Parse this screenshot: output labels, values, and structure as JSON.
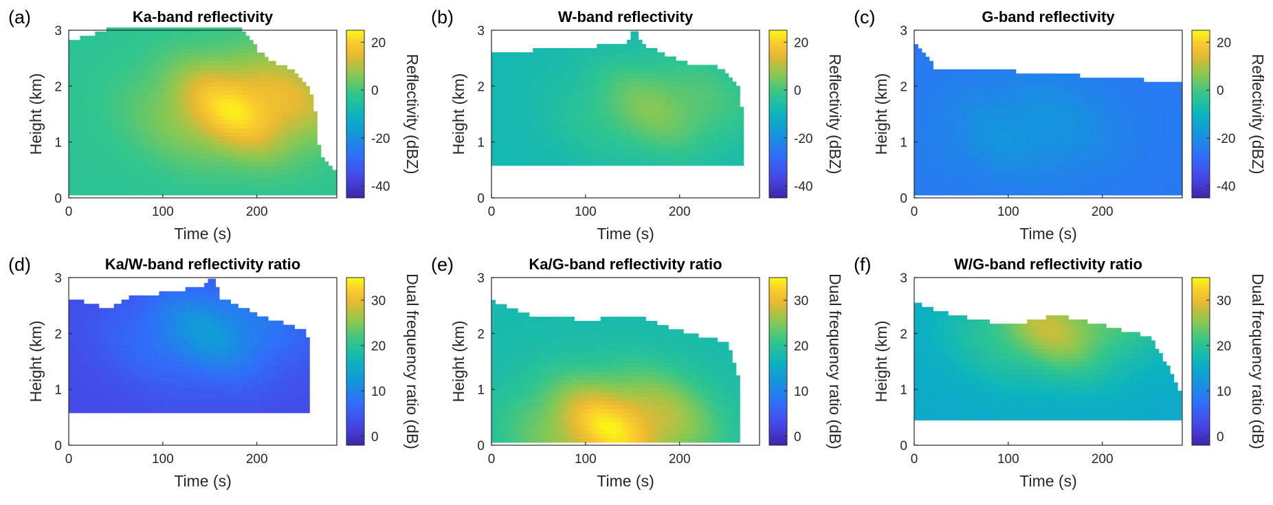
{
  "chart_data": [
    {
      "id": "a",
      "letter": "(a)",
      "type": "heatmap",
      "title": "Ka-band reflectivity",
      "xlabel": "Time (s)",
      "ylabel": "Height (km)",
      "cblabel": "Reflectivity (dBZ)",
      "xlim": [
        0,
        285
      ],
      "ylim": [
        0,
        3
      ],
      "xticks": [
        0,
        100,
        200
      ],
      "yticks": [
        0,
        1,
        2,
        3
      ],
      "clim": [
        -45,
        25
      ],
      "cticks": [
        20,
        0,
        -20,
        -40
      ],
      "echo_bottom_km": 0.05,
      "echo_top_km": [
        [
          0,
          2.8
        ],
        [
          20,
          2.85
        ],
        [
          40,
          3
        ],
        [
          180,
          3
        ],
        [
          200,
          2.6
        ],
        [
          210,
          2.45
        ],
        [
          240,
          2.2
        ],
        [
          255,
          1.9
        ],
        [
          260,
          1.5
        ],
        [
          250,
          1.1
        ],
        [
          265,
          0.9
        ],
        [
          270,
          0.6
        ],
        [
          285,
          0.45
        ],
        [
          290,
          0.05
        ]
      ],
      "peak": {
        "t": 185,
        "h": 1.6,
        "value": 22
      },
      "base_value": -3
    },
    {
      "id": "b",
      "letter": "(b)",
      "type": "heatmap",
      "title": "W-band reflectivity",
      "xlabel": "Time (s)",
      "ylabel": "Height (km)",
      "cblabel": "Reflectivity (dBZ)",
      "xlim": [
        0,
        285
      ],
      "ylim": [
        0,
        3
      ],
      "xticks": [
        0,
        100,
        200
      ],
      "yticks": [
        0,
        1,
        2,
        3
      ],
      "clim": [
        -45,
        25
      ],
      "cticks": [
        20,
        0,
        -20,
        -40
      ],
      "echo_bottom_km": 0.58,
      "echo_top_km": [
        [
          0,
          2.55
        ],
        [
          40,
          2.6
        ],
        [
          60,
          2.65
        ],
        [
          140,
          2.7
        ],
        [
          150,
          3
        ],
        [
          160,
          2.7
        ],
        [
          200,
          2.4
        ],
        [
          240,
          2.3
        ],
        [
          260,
          2.0
        ],
        [
          265,
          1.5
        ],
        [
          255,
          0.9
        ],
        [
          250,
          0.6
        ]
      ],
      "peak": {
        "t": 180,
        "h": 1.6,
        "value": 5
      },
      "base_value": -8
    },
    {
      "id": "c",
      "letter": "(c)",
      "type": "heatmap",
      "title": "G-band reflectivity",
      "xlabel": "Time (s)",
      "ylabel": "Height (km)",
      "cblabel": "Reflectivity (dBZ)",
      "xlim": [
        0,
        285
      ],
      "ylim": [
        0,
        3
      ],
      "xticks": [
        0,
        100,
        200
      ],
      "yticks": [
        0,
        1,
        2,
        3
      ],
      "clim": [
        -45,
        25
      ],
      "cticks": [
        20,
        0,
        -20,
        -40
      ],
      "echo_bottom_km": 0.05,
      "echo_top_km": [
        [
          0,
          2.7
        ],
        [
          20,
          2.3
        ],
        [
          60,
          2.25
        ],
        [
          150,
          2.2
        ],
        [
          200,
          2.1
        ],
        [
          285,
          2.05
        ]
      ],
      "peak": {
        "t": 120,
        "h": 1.2,
        "value": -18
      },
      "base_value": -25
    },
    {
      "id": "d",
      "letter": "(d)",
      "type": "heatmap",
      "title": "Ka/W-band reflectivity ratio",
      "xlabel": "Time (s)",
      "ylabel": "Height (km)",
      "cblabel": "Dual frequency ratio (dB)",
      "xlim": [
        0,
        285
      ],
      "ylim": [
        0,
        3
      ],
      "xticks": [
        0,
        100,
        200
      ],
      "yticks": [
        0,
        1,
        2,
        3
      ],
      "clim": [
        -2,
        35
      ],
      "cticks": [
        30,
        20,
        10,
        0
      ],
      "echo_bottom_km": 0.58,
      "echo_top_km": [
        [
          0,
          2.6
        ],
        [
          40,
          2.4
        ],
        [
          60,
          2.6
        ],
        [
          140,
          2.8
        ],
        [
          150,
          3
        ],
        [
          160,
          2.6
        ],
        [
          200,
          2.3
        ],
        [
          250,
          2.0
        ],
        [
          255,
          1.7
        ],
        [
          250,
          0.6
        ]
      ],
      "peak": {
        "t": 150,
        "h": 2.0,
        "value": 12
      },
      "base_value": 3
    },
    {
      "id": "e",
      "letter": "(e)",
      "type": "heatmap",
      "title": "Ka/G-band reflectivity ratio",
      "xlabel": "Time (s)",
      "ylabel": "Height (km)",
      "cblabel": "Dual frequency ratio (dB)",
      "xlim": [
        0,
        285
      ],
      "ylim": [
        0,
        3
      ],
      "xticks": [
        0,
        100,
        200
      ],
      "yticks": [
        0,
        1,
        2,
        3
      ],
      "clim": [
        -2,
        35
      ],
      "cticks": [
        30,
        20,
        10,
        0
      ],
      "echo_bottom_km": 0.05,
      "echo_top_km": [
        [
          0,
          2.55
        ],
        [
          40,
          2.3
        ],
        [
          100,
          2.2
        ],
        [
          150,
          2.3
        ],
        [
          200,
          2.0
        ],
        [
          250,
          1.8
        ],
        [
          260,
          1.2
        ],
        [
          250,
          0.9
        ],
        [
          255,
          0.5
        ],
        [
          240,
          0.05
        ]
      ],
      "peak": {
        "t": 130,
        "h": 0.3,
        "value": 33
      },
      "base_value": 18
    },
    {
      "id": "f",
      "letter": "(f)",
      "type": "heatmap",
      "title": "W/G-band reflectivity ratio",
      "xlabel": "Time (s)",
      "ylabel": "Height (km)",
      "cblabel": "Dual frequency ratio (dB)",
      "xlim": [
        0,
        285
      ],
      "ylim": [
        0,
        3
      ],
      "xticks": [
        0,
        100,
        200
      ],
      "yticks": [
        0,
        1,
        2,
        3
      ],
      "clim": [
        -2,
        35
      ],
      "cticks": [
        30,
        20,
        10,
        0
      ],
      "echo_bottom_km": 0.45,
      "echo_top_km": [
        [
          0,
          2.5
        ],
        [
          40,
          2.3
        ],
        [
          100,
          2.1
        ],
        [
          150,
          2.3
        ],
        [
          200,
          2.1
        ],
        [
          250,
          1.9
        ],
        [
          270,
          1.3
        ],
        [
          280,
          0.9
        ],
        [
          260,
          0.45
        ]
      ],
      "peak": {
        "t": 150,
        "h": 2.1,
        "value": 27
      },
      "base_value": 15
    }
  ]
}
